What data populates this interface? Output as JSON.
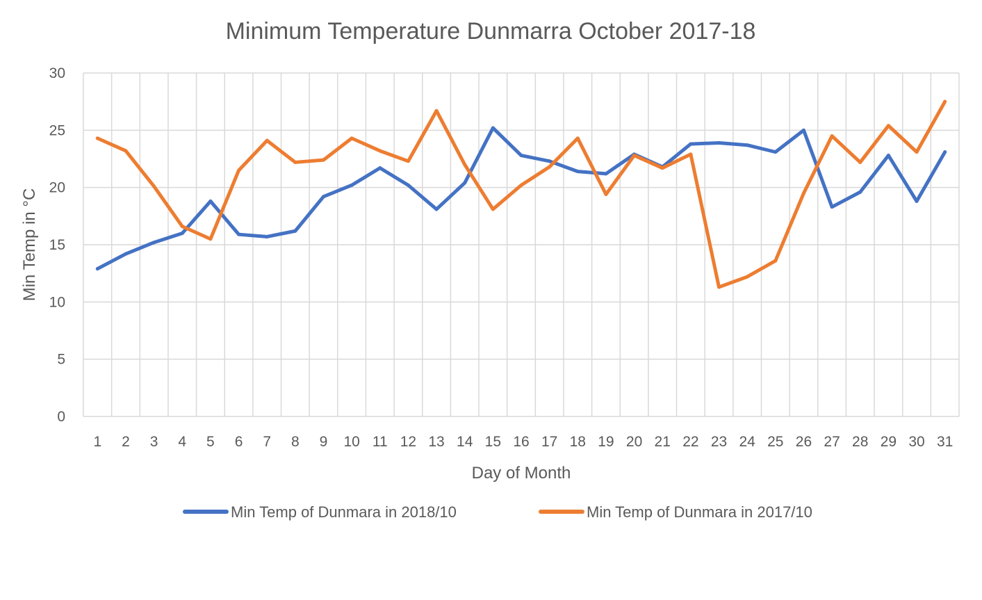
{
  "chart_data": {
    "type": "line",
    "title": "Minimum Temperature Dunmarra October 2017-18",
    "xlabel": "Day of Month",
    "ylabel": "Min Temp in °C",
    "ylim": [
      0,
      30
    ],
    "yticks": [
      "0",
      "5",
      "10",
      "15",
      "20",
      "25",
      "30"
    ],
    "grid": true,
    "legend_position": "bottom",
    "categories": [
      "1",
      "2",
      "3",
      "4",
      "5",
      "6",
      "7",
      "8",
      "9",
      "10",
      "11",
      "12",
      "13",
      "14",
      "15",
      "16",
      "17",
      "18",
      "19",
      "20",
      "21",
      "22",
      "23",
      "24",
      "25",
      "26",
      "27",
      "28",
      "29",
      "30",
      "31"
    ],
    "series": [
      {
        "name": "Min Temp of Dunmara in 2018/10",
        "color": "#4472C4",
        "values": [
          12.9,
          14.2,
          15.2,
          16.0,
          18.8,
          15.9,
          15.7,
          16.2,
          19.2,
          20.2,
          21.7,
          20.2,
          18.1,
          20.4,
          25.2,
          22.8,
          22.3,
          21.4,
          21.2,
          22.9,
          21.8,
          23.8,
          23.9,
          23.7,
          23.1,
          25.0,
          18.3,
          19.6,
          22.8,
          18.8,
          23.1
        ]
      },
      {
        "name": "Min Temp of Dunmara in 2017/10",
        "color": "#ED7D31",
        "values": [
          24.3,
          23.2,
          20.1,
          16.6,
          15.5,
          21.5,
          24.1,
          22.2,
          22.4,
          24.3,
          23.2,
          22.3,
          26.7,
          22.0,
          18.1,
          20.2,
          21.8,
          24.3,
          19.4,
          22.8,
          21.7,
          22.9,
          11.3,
          12.2,
          13.6,
          19.5,
          24.5,
          22.2,
          25.4,
          23.1,
          27.5
        ]
      }
    ]
  }
}
